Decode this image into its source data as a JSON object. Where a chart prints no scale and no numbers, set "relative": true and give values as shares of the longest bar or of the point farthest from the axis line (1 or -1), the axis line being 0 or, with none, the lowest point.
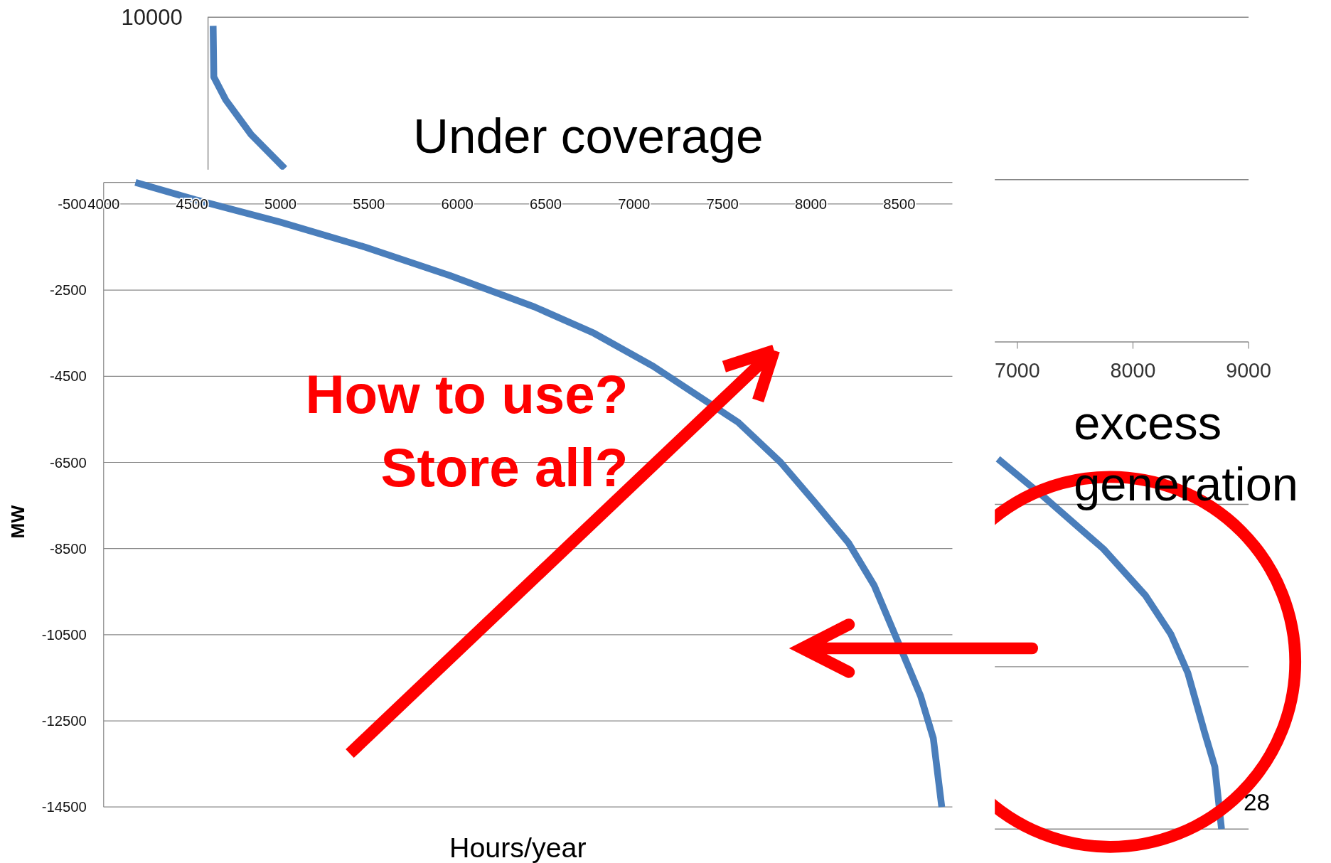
{
  "chart_data": [
    {
      "type": "line",
      "relative": true,
      "annotations": [
        "Under coverage",
        "excess generation",
        "28",
        "10000"
      ],
      "xlim": [
        0,
        9000
      ],
      "xticks": [
        7000,
        8000,
        9000
      ],
      "grid": "y",
      "series": [
        {
          "color": "#4a7ebb",
          "x": [
            44,
            50,
            153,
            372,
            664,
            null,
            6832,
            7234,
            7745,
            8110,
            8328,
            8474,
            8620,
            8708,
            8766
          ],
          "values": [
            0.649,
            0.544,
            0.497,
            0.426,
            0.356,
            null,
            -0.24,
            -0.319,
            -0.425,
            -0.521,
            -0.6,
            -0.679,
            -0.802,
            -0.872,
            -1
          ]
        }
      ]
    },
    {
      "type": "line",
      "xlabel": "Hours/year",
      "ylabel": "MW",
      "annotations": [
        "How to use?\nStore all?"
      ],
      "xlim": [
        4000,
        8800
      ],
      "ylim": [
        -14500,
        0
      ],
      "xticks": [
        4000,
        4500,
        5000,
        5500,
        6000,
        6500,
        7000,
        7500,
        8000,
        8500
      ],
      "yticks": [
        -500,
        -2500,
        -4500,
        -6500,
        -8500,
        -10500,
        -12500,
        -14500
      ],
      "grid": "y",
      "series": [
        {
          "color": "#4a7ebb",
          "x": [
            4180,
            4518,
            4998,
            5477,
            5957,
            6437,
            6773,
            7109,
            7349,
            7589,
            7829,
            8021,
            8213,
            8357,
            8500,
            8620,
            8692,
            8740
          ],
          "values": [
            0,
            -400,
            -920,
            -1500,
            -2160,
            -2890,
            -3500,
            -4270,
            -4920,
            -5570,
            -6500,
            -7420,
            -8370,
            -9350,
            -10740,
            -11920,
            -12900,
            -14500
          ]
        }
      ]
    }
  ]
}
